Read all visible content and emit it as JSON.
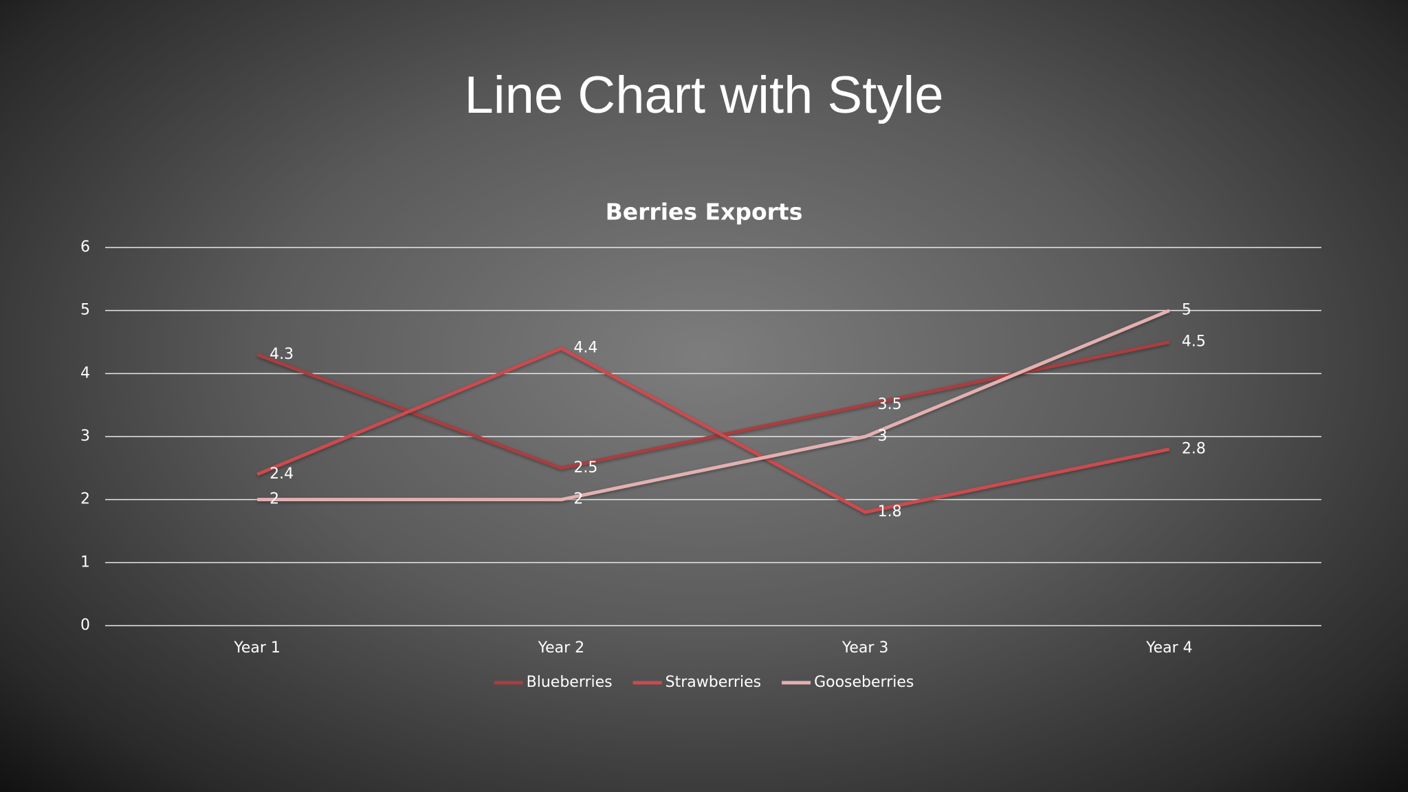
{
  "page_title": "Line Chart with Style",
  "chart_data": {
    "type": "line",
    "title": "Berries Exports",
    "categories": [
      "Year 1",
      "Year 2",
      "Year 3",
      "Year 4"
    ],
    "series": [
      {
        "name": "Blueberries",
        "color": "#a83e40",
        "values": [
          4.3,
          2.5,
          3.5,
          4.5
        ]
      },
      {
        "name": "Strawberries",
        "color": "#cc4a4e",
        "values": [
          2.4,
          4.4,
          1.8,
          2.8
        ]
      },
      {
        "name": "Gooseberries",
        "color": "#e4b0b0",
        "values": [
          2,
          2,
          3,
          5
        ]
      }
    ],
    "ylim": [
      0,
      6
    ],
    "yticks": [
      0,
      1,
      2,
      3,
      4,
      5,
      6
    ],
    "grid": true,
    "legend": "bottom",
    "data_labels": true
  }
}
